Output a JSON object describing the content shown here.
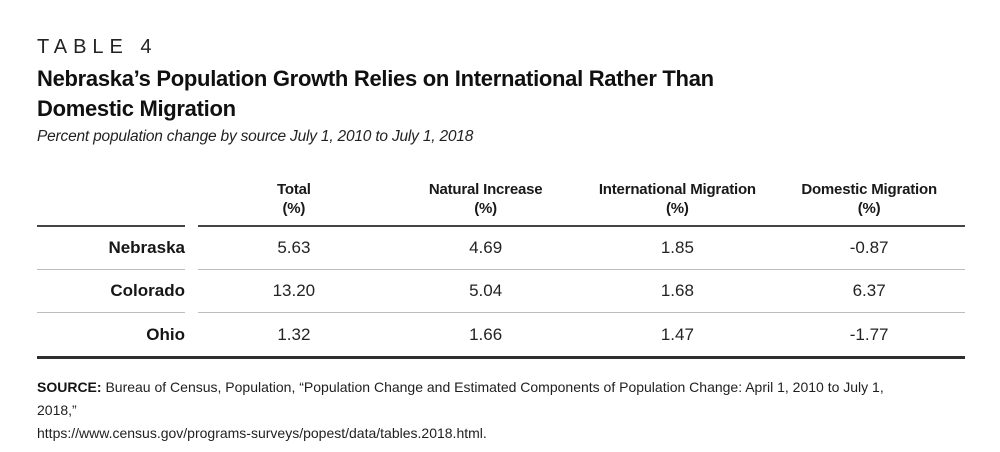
{
  "table_label": "TABLE 4",
  "title": {
    "line1": "Nebraska’s Population Growth Relies on International Rather Than",
    "line2": "Domestic Migration"
  },
  "subtitle": "Percent population change by source July 1, 2010 to July 1, 2018",
  "table": {
    "columns": [
      {
        "label": "Total",
        "unit": "(%)"
      },
      {
        "label": "Natural Increase",
        "unit": "(%)"
      },
      {
        "label": "International Migration",
        "unit": "(%)"
      },
      {
        "label": "Domestic Migration",
        "unit": "(%)"
      }
    ],
    "rows": [
      {
        "state": "Nebraska",
        "values": [
          "5.63",
          "4.69",
          "1.85",
          "-0.87"
        ]
      },
      {
        "state": "Colorado",
        "values": [
          "13.20",
          "5.04",
          "1.68",
          "6.37"
        ]
      },
      {
        "state": "Ohio",
        "values": [
          "1.32",
          "1.66",
          "1.47",
          "-1.77"
        ]
      }
    ]
  },
  "source": {
    "label": "SOURCE:",
    "line1": " Bureau of Census, Population, “Population Change and Estimated Components of Population Change: April 1, 2010 to July 1, 2018,”",
    "line2": "https://www.census.gov/programs-surveys/popest/data/tables.2018.html."
  },
  "colors": {
    "text": "#1f1f1f",
    "title": "#101010",
    "header_rule": "#454545",
    "row_separator": "#bdbdbd",
    "bottom_rule": "#2e2e2e",
    "background": "#ffffff"
  }
}
